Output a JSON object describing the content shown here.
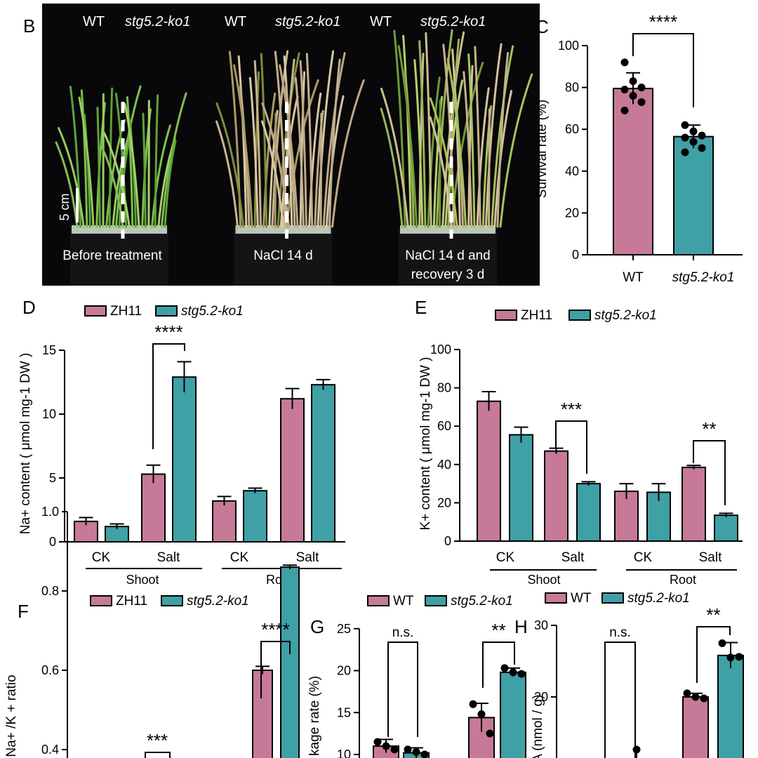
{
  "panel_letters": {
    "B": "B",
    "C": "C",
    "D": "D",
    "E": "E",
    "F": "F",
    "G": "G",
    "H": "H"
  },
  "photo": {
    "panels": [
      {
        "wt": "WT",
        "ko": "stg5.2-ko1",
        "caption_lines": [
          "Before treatment"
        ]
      },
      {
        "wt": "WT",
        "ko": "stg5.2-ko1",
        "caption_lines": [
          "NaCl 14 d"
        ]
      },
      {
        "wt": "WT",
        "ko": "stg5.2-ko1",
        "caption_lines": [
          "NaCl 14 d and",
          "recovery 3 d"
        ]
      }
    ],
    "scale_bar": "5 cm"
  },
  "colors": {
    "pink": "#c67a97",
    "teal": "#3fa0a5",
    "black": "#000000"
  },
  "chart_data": [
    {
      "id": "C",
      "type": "bar",
      "categories": [
        "WT",
        "stg5.2-ko1"
      ],
      "values": [
        79.5,
        56.5
      ],
      "errors": [
        7.5,
        5.5
      ],
      "points": [
        [
          92,
          83,
          80,
          79,
          76,
          73,
          69
        ],
        [
          62,
          59,
          57,
          56,
          54,
          51,
          49
        ]
      ],
      "ylabel": "Survival rate (%)",
      "ylim": [
        0,
        100
      ],
      "yticks": [
        0,
        20,
        40,
        60,
        80,
        100
      ],
      "significance": [
        {
          "label": "****"
        }
      ]
    },
    {
      "id": "D",
      "type": "bar",
      "legend": [
        "ZH11",
        "stg5.2-ko1"
      ],
      "categories": [
        "CK",
        "Salt",
        "CK",
        "Salt"
      ],
      "groups": [
        "Shoot",
        "Root"
      ],
      "series": [
        {
          "name": "ZH11",
          "values": [
            1.6,
            5.3,
            3.2,
            11.2
          ],
          "errors": [
            0.3,
            0.7,
            0.35,
            0.8
          ]
        },
        {
          "name": "stg5.2-ko1",
          "values": [
            1.2,
            12.9,
            4.0,
            12.3
          ],
          "errors": [
            0.2,
            1.2,
            0.2,
            0.4
          ]
        }
      ],
      "ylabel": "Na+ content ( μmol mg-1 DW )",
      "ylim": [
        0,
        15
      ],
      "yticks": [
        0,
        5,
        10,
        15
      ],
      "significance": [
        {
          "label": "****"
        }
      ]
    },
    {
      "id": "E",
      "type": "bar",
      "legend": [
        "ZH11",
        "stg5.2-ko1"
      ],
      "categories": [
        "CK",
        "Salt",
        "CK",
        "Salt"
      ],
      "groups": [
        "Shoot",
        "Root"
      ],
      "series": [
        {
          "name": "ZH11",
          "values": [
            73,
            47,
            26,
            38.5
          ],
          "errors": [
            5,
            1.5,
            4,
            1
          ]
        },
        {
          "name": "stg5.2-ko1",
          "values": [
            55.5,
            30,
            25.5,
            13.5
          ],
          "errors": [
            4,
            1,
            4.5,
            1
          ]
        }
      ],
      "ylabel": "K+ content ( μmol mg-1 DW )",
      "ylim": [
        0,
        100
      ],
      "yticks": [
        0,
        20,
        40,
        60,
        80,
        100
      ],
      "significance": [
        {
          "label": "***"
        },
        {
          "label": "**"
        }
      ]
    },
    {
      "id": "F",
      "type": "bar",
      "legend": [
        "ZH11",
        "stg5.2-ko1"
      ],
      "series": [
        {
          "name": "ZH11",
          "values": [
            0.6
          ],
          "errors": [
            0.01
          ]
        },
        {
          "name": "stg5.2-ko1",
          "values": [
            0.86
          ],
          "errors": [
            0.005
          ]
        }
      ],
      "ylabel": "Na+ /K + ratio",
      "ylim": [
        0,
        1.0
      ],
      "yticks": [
        0.4,
        0.6,
        0.8,
        1.0
      ],
      "significance": [
        {
          "label": "****"
        },
        {
          "label": "***"
        }
      ]
    },
    {
      "id": "G",
      "type": "bar",
      "legend": [
        "WT",
        "stg5.2-ko1"
      ],
      "series": [
        {
          "name": "WT",
          "values": [
            11.0,
            14.4
          ],
          "errors": [
            0.8,
            1.7
          ]
        },
        {
          "name": "stg5.2-ko1",
          "values": [
            10.2,
            19.8
          ],
          "errors": [
            0.6,
            0.5
          ]
        }
      ],
      "points": [
        [
          11.5,
          11.0,
          10.6,
          16.0,
          14.8,
          12.5
        ],
        [
          10.6,
          10.3,
          10.0,
          20.3,
          19.8,
          19.6
        ]
      ],
      "ylabel": "kage rate (%)",
      "ylim": [
        10,
        25
      ],
      "yticks": [
        10,
        15,
        20,
        25
      ],
      "significance": [
        {
          "label": "n.s."
        },
        {
          "label": "**"
        }
      ]
    },
    {
      "id": "H",
      "type": "bar",
      "legend": [
        "WT",
        "stg5.2-ko1"
      ],
      "series": [
        {
          "name": "WT",
          "values": [
            20.0
          ],
          "errors": [
            0.5
          ]
        },
        {
          "name": "stg5.2-ko1",
          "values": [
            25.8
          ],
          "errors": [
            1.8
          ]
        }
      ],
      "points": [
        [
          20.5,
          20.0,
          19.8
        ],
        [
          27.5,
          25.5,
          25.6
        ]
      ],
      "ylabel": "DA (nmol / g)",
      "ylim": [
        15,
        30
      ],
      "yticks": [
        20,
        30
      ],
      "significance": [
        {
          "label": "n.s."
        },
        {
          "label": "**"
        }
      ]
    }
  ]
}
